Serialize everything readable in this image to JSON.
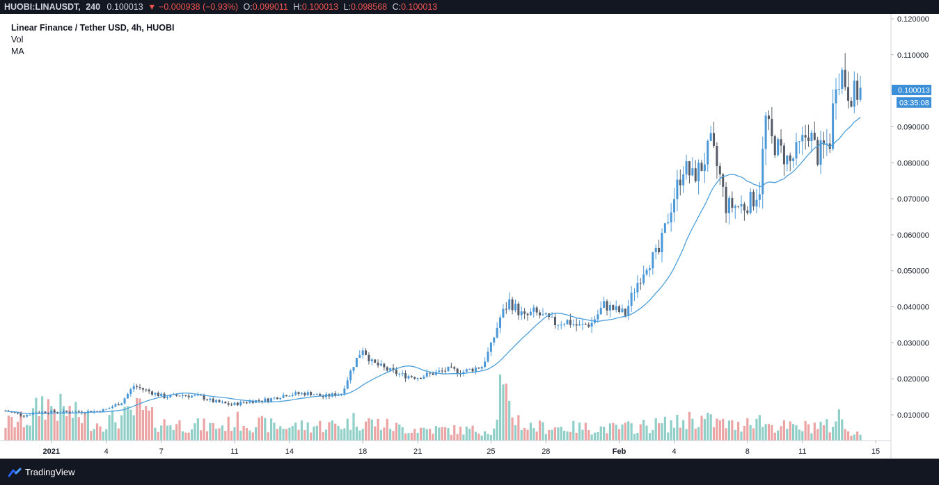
{
  "header": {
    "symbol": "HUOBI:LINAUSDT,",
    "interval": "240",
    "last": "0.100013",
    "change_arrow": "▼",
    "change": "−0.000938 (−0.93%)",
    "open_label": "O:",
    "open": "0.099011",
    "high_label": "H:",
    "high": "0.100013",
    "low_label": "L:",
    "low": "0.098568",
    "close_label": "C:",
    "close": "0.100013"
  },
  "legend": {
    "title": "Linear Finance / Tether USD, 4h, HUOBI",
    "vol": "Vol",
    "ma": "MA"
  },
  "price_tag": {
    "value": "0.100013",
    "countdown": "03:35:08"
  },
  "footer": {
    "brand": "TradingView"
  },
  "colors": {
    "up": "#4a98d8",
    "down": "#555b66",
    "vol_up": "#8fcfc8",
    "vol_down": "#eba3a3",
    "ma": "#4a9fdc",
    "tag": "#3a8fd8"
  },
  "chart_data": {
    "type": "candlestick",
    "y_ticks": [
      "0.120000",
      "0.110000",
      "0.100000",
      "0.090000",
      "0.080000",
      "0.070000",
      "0.060000",
      "0.050000",
      "0.040000",
      "0.030000",
      "0.020000",
      "0.010000"
    ],
    "x_ticks": [
      {
        "label": "2021",
        "i": 15
      },
      {
        "label": "4",
        "i": 33
      },
      {
        "label": "7",
        "i": 51
      },
      {
        "label": "11",
        "i": 75
      },
      {
        "label": "14",
        "i": 93
      },
      {
        "label": "18",
        "i": 117
      },
      {
        "label": "21",
        "i": 135
      },
      {
        "label": "25",
        "i": 159
      },
      {
        "label": "28",
        "i": 177
      },
      {
        "label": "Feb",
        "i": 201
      },
      {
        "label": "4",
        "i": 219
      },
      {
        "label": "8",
        "i": 243
      },
      {
        "label": "11",
        "i": 261
      },
      {
        "label": "15",
        "i": 285
      }
    ],
    "ylim": [
      0,
      0.124
    ],
    "n_slots": 290,
    "anchors": [
      [
        0,
        0.0111
      ],
      [
        6,
        0.0098
      ],
      [
        10,
        0.0108
      ],
      [
        20,
        0.0108
      ],
      [
        30,
        0.011
      ],
      [
        33,
        0.0115
      ],
      [
        38,
        0.0135
      ],
      [
        42,
        0.018
      ],
      [
        46,
        0.0168
      ],
      [
        52,
        0.015
      ],
      [
        58,
        0.0155
      ],
      [
        64,
        0.015
      ],
      [
        68,
        0.0137
      ],
      [
        74,
        0.0128
      ],
      [
        80,
        0.0138
      ],
      [
        86,
        0.0142
      ],
      [
        92,
        0.0157
      ],
      [
        100,
        0.016
      ],
      [
        104,
        0.015
      ],
      [
        110,
        0.016
      ],
      [
        114,
        0.024
      ],
      [
        117,
        0.0285
      ],
      [
        120,
        0.0245
      ],
      [
        125,
        0.0225
      ],
      [
        130,
        0.021
      ],
      [
        135,
        0.0205
      ],
      [
        140,
        0.0215
      ],
      [
        145,
        0.0225
      ],
      [
        150,
        0.022
      ],
      [
        156,
        0.0235
      ],
      [
        159,
        0.029
      ],
      [
        162,
        0.037
      ],
      [
        165,
        0.0415
      ],
      [
        170,
        0.037
      ],
      [
        173,
        0.0385
      ],
      [
        180,
        0.0355
      ],
      [
        184,
        0.036
      ],
      [
        188,
        0.0345
      ],
      [
        192,
        0.0355
      ],
      [
        196,
        0.0405
      ],
      [
        200,
        0.039
      ],
      [
        203,
        0.038
      ],
      [
        206,
        0.045
      ],
      [
        210,
        0.052
      ],
      [
        214,
        0.055
      ],
      [
        218,
        0.068
      ],
      [
        222,
        0.079
      ],
      [
        225,
        0.076
      ],
      [
        228,
        0.079
      ],
      [
        231,
        0.085
      ],
      [
        234,
        0.076
      ],
      [
        236,
        0.068
      ],
      [
        239,
        0.068
      ],
      [
        242,
        0.068
      ],
      [
        245,
        0.07
      ],
      [
        247,
        0.073
      ],
      [
        249,
        0.092
      ],
      [
        251,
        0.086
      ],
      [
        254,
        0.083
      ],
      [
        257,
        0.08
      ],
      [
        260,
        0.084
      ],
      [
        263,
        0.089
      ],
      [
        266,
        0.082
      ],
      [
        268,
        0.084
      ],
      [
        270,
        0.086
      ],
      [
        272,
        0.104
      ],
      [
        274,
        0.105
      ],
      [
        276,
        0.1
      ],
      [
        278,
        0.099
      ],
      [
        280,
        0.1
      ]
    ],
    "vol_anchors": [
      [
        0,
        10
      ],
      [
        8,
        12
      ],
      [
        12,
        22
      ],
      [
        30,
        10
      ],
      [
        40,
        14
      ],
      [
        44,
        18
      ],
      [
        50,
        10
      ],
      [
        60,
        9
      ],
      [
        70,
        8
      ],
      [
        76,
        11
      ],
      [
        90,
        8
      ],
      [
        110,
        9
      ],
      [
        115,
        12
      ],
      [
        130,
        7
      ],
      [
        150,
        6
      ],
      [
        160,
        6
      ],
      [
        162,
        30
      ],
      [
        165,
        18
      ],
      [
        170,
        8
      ],
      [
        200,
        7
      ],
      [
        220,
        10
      ],
      [
        225,
        13
      ],
      [
        240,
        8
      ],
      [
        244,
        14
      ],
      [
        250,
        9
      ],
      [
        260,
        7
      ],
      [
        265,
        9
      ],
      [
        270,
        8
      ],
      [
        273,
        14
      ],
      [
        276,
        6
      ],
      [
        280,
        4
      ]
    ],
    "vol_max": 30
  }
}
